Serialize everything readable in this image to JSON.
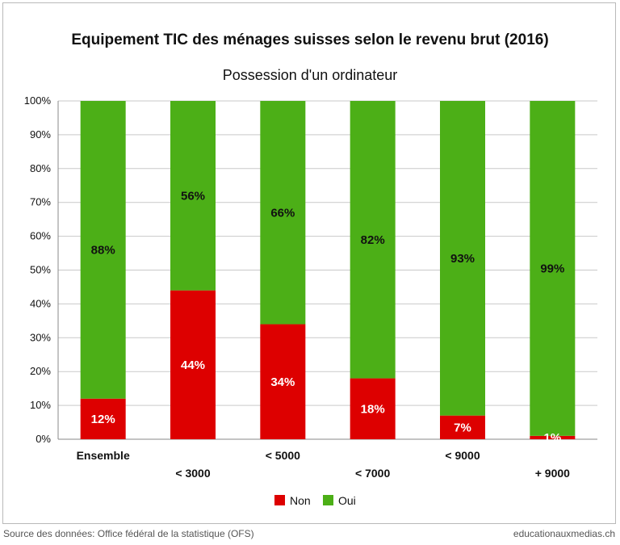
{
  "chart_data": {
    "type": "bar",
    "stacked": true,
    "title": "Equipement TIC des ménages suisses selon le revenu brut (2016)",
    "subtitle": "Possession d'un ordinateur",
    "categories": [
      "Ensemble",
      "< 3000",
      "< 5000",
      "< 7000",
      "< 9000",
      "+ 9000"
    ],
    "series": [
      {
        "name": "Non",
        "values": [
          12,
          44,
          34,
          18,
          7,
          1
        ],
        "labels": [
          "12%",
          "44%",
          "34%",
          "18%",
          "7%",
          "1%"
        ],
        "color": "#dd0000"
      },
      {
        "name": "Oui",
        "values": [
          88,
          56,
          66,
          82,
          93,
          99
        ],
        "labels": [
          "88%",
          "56%",
          "66%",
          "82%",
          "93%",
          "99%"
        ],
        "color": "#4caf17"
      }
    ],
    "y_ticks": [
      "0%",
      "10%",
      "20%",
      "30%",
      "40%",
      "50%",
      "60%",
      "70%",
      "80%",
      "90%",
      "100%"
    ],
    "ylim": [
      0,
      100
    ],
    "grid": true,
    "legend_position": "bottom"
  },
  "footer": {
    "source": "Source des données: Office fédéral de la statistique (OFS)",
    "site": "educationauxmedias.ch"
  }
}
